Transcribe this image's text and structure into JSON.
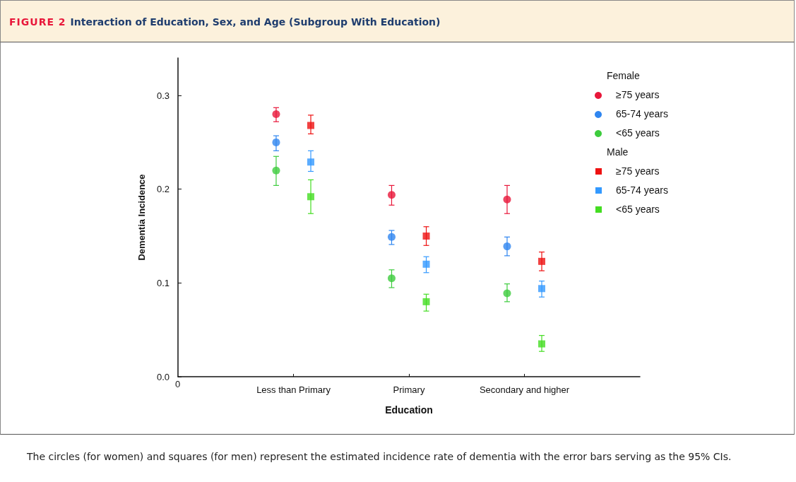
{
  "chart_data": {
    "type": "scatter",
    "title": "FIGURE 2 Interaction of Education, Sex, and Age (Subgroup With Education)",
    "xlabel": "Education",
    "ylabel": "Dementia Incidence",
    "categories": [
      "Less than Primary",
      "Primary",
      "Secondary and higher"
    ],
    "ylim": [
      0,
      0.34
    ],
    "yticks": [
      {
        "value": 0,
        "label": "0.0"
      },
      0.1,
      0.2,
      0.3
    ],
    "grid": false,
    "legend": "top right",
    "annotations": [
      "Female",
      "Male",
      "0",
      "The circles (for women) and squares (for men) represent the estimated incidence rate of dementia with the error bars serving as the 95% CIs."
    ],
    "series": [
      {
        "name": "≥75 years",
        "color": "#e8173a",
        "marker": "circle",
        "values": [
          0.28,
          0.194,
          0.189
        ],
        "errors": [
          [
            0.272,
            0.287
          ],
          [
            0.183,
            0.204
          ],
          [
            0.174,
            0.204
          ]
        ]
      },
      {
        "name": "65-74 years",
        "color": "#2f86f0",
        "marker": "circle",
        "values": [
          0.25,
          0.149,
          0.139
        ],
        "errors": [
          [
            0.241,
            0.257
          ],
          [
            0.141,
            0.156
          ],
          [
            0.129,
            0.149
          ]
        ]
      },
      {
        "name": "<65 years",
        "color": "#3dcc3d",
        "marker": "circle",
        "values": [
          0.22,
          0.105,
          0.089
        ],
        "errors": [
          [
            0.204,
            0.235
          ],
          [
            0.095,
            0.114
          ],
          [
            0.08,
            0.099
          ]
        ]
      },
      {
        "name": "≥75 years",
        "color": "#ee1111",
        "marker": "square",
        "values": [
          0.268,
          0.15,
          0.123
        ],
        "errors": [
          [
            0.259,
            0.279
          ],
          [
            0.14,
            0.16
          ],
          [
            0.113,
            0.133
          ]
        ]
      },
      {
        "name": "65-74 years",
        "color": "#3399ff",
        "marker": "square",
        "values": [
          0.229,
          0.12,
          0.094
        ],
        "errors": [
          [
            0.219,
            0.241
          ],
          [
            0.111,
            0.128
          ],
          [
            0.085,
            0.102
          ]
        ]
      },
      {
        "name": "<65 years",
        "color": "#44dd22",
        "marker": "square",
        "values": [
          0.192,
          0.08,
          0.035
        ],
        "errors": [
          [
            0.174,
            0.21
          ],
          [
            0.07,
            0.088
          ],
          [
            0.027,
            0.044
          ]
        ]
      }
    ]
  }
}
